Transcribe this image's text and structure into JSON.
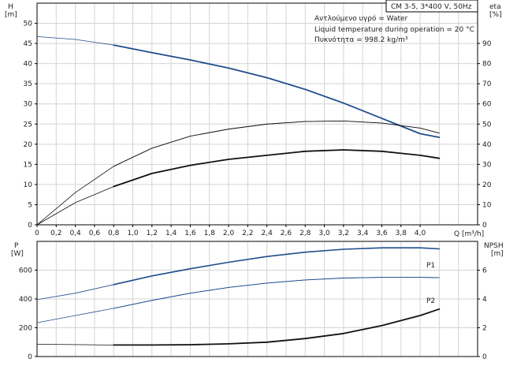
{
  "chart_data": [
    {
      "type": "line",
      "title": "CM 3-5, 3*400 V, 50Hz",
      "info_lines": [
        "Αντλούμενο υγρό = Water",
        "Liquid temperature during operation = 20 °C",
        "Πυκνότητα = 998.2 kg/m³"
      ],
      "ylabel_left": "H",
      "yunit_left": "[m]",
      "ylabel_right": "eta",
      "yunit_right": "[%]",
      "xlabel": "Q [m³/h]",
      "xlim": [
        0,
        4.6
      ],
      "ylim_left": [
        0,
        55
      ],
      "ylim_right": [
        0,
        110
      ],
      "grid": true,
      "x_ticks": [
        "0",
        "0,2",
        "0,4",
        "0,6",
        "0,8",
        "1,0",
        "1,2",
        "1,4",
        "1,6",
        "1,8",
        "2,0",
        "2,2",
        "2,4",
        "2,6",
        "2,8",
        "3,0",
        "3,2",
        "3,4",
        "3,6",
        "3,8",
        "4,0"
      ],
      "y_ticks_left": [
        "0",
        "5",
        "10",
        "15",
        "20",
        "25",
        "30",
        "35",
        "40",
        "45",
        "50"
      ],
      "y_ticks_right": [
        "0",
        "10",
        "20",
        "30",
        "40",
        "50",
        "60",
        "70",
        "80",
        "90"
      ],
      "series": [
        {
          "axis": "left",
          "color": "#1f4e8c",
          "x": [
            0,
            0.4,
            0.8,
            1.2,
            1.6,
            2.0,
            2.4,
            2.8,
            3.2,
            3.6,
            4.0,
            4.2
          ],
          "y": [
            46.7,
            46.0,
            44.6,
            42.7,
            40.9,
            38.9,
            36.5,
            33.6,
            30.2,
            26.4,
            22.6,
            21.7
          ]
        },
        {
          "axis": "right",
          "color": "#111111",
          "x": [
            0,
            0.4,
            0.8,
            1.2,
            1.6,
            2.0,
            2.4,
            2.8,
            3.2,
            3.6,
            4.0,
            4.2
          ],
          "y": [
            0,
            16,
            29,
            38,
            44,
            47.5,
            50,
            51.3,
            51.5,
            50.5,
            48,
            45.5
          ]
        },
        {
          "axis": "right",
          "color": "#111111",
          "x": [
            0,
            0.4,
            0.8,
            1.2,
            1.6,
            2.0,
            2.4,
            2.8,
            3.2,
            3.6,
            4.0,
            4.2
          ],
          "y": [
            0,
            11,
            19,
            25.5,
            29.5,
            32.5,
            34.5,
            36.5,
            37.2,
            36.5,
            34.5,
            33
          ]
        }
      ]
    },
    {
      "type": "line",
      "ylabel_left": "P",
      "yunit_left": "[W]",
      "ylabel_right": "NPSH",
      "yunit_right": "[m]",
      "xlim": [
        0,
        4.6
      ],
      "ylim_left": [
        0,
        800
      ],
      "ylim_right": [
        0,
        8
      ],
      "grid": true,
      "y_ticks_left": [
        "0",
        "200",
        "400",
        "600"
      ],
      "y_ticks_right": [
        "0",
        "2",
        "4",
        "6"
      ],
      "series": [
        {
          "name": "P1",
          "axis": "left",
          "color": "#1f4e8c",
          "x": [
            0,
            0.4,
            0.8,
            1.2,
            1.6,
            2.0,
            2.4,
            2.8,
            3.2,
            3.6,
            4.0,
            4.2
          ],
          "y": [
            395,
            440,
            500,
            560,
            610,
            655,
            695,
            725,
            745,
            755,
            755,
            748
          ]
        },
        {
          "name": "P2",
          "axis": "left",
          "color": "#1f4e8c",
          "x": [
            0,
            0.4,
            0.8,
            1.2,
            1.6,
            2.0,
            2.4,
            2.8,
            3.2,
            3.6,
            4.0,
            4.2
          ],
          "y": [
            235,
            285,
            335,
            390,
            440,
            480,
            510,
            532,
            545,
            550,
            550,
            548
          ]
        },
        {
          "axis": "right",
          "color": "#111111",
          "x": [
            0,
            0.4,
            0.8,
            1.2,
            1.6,
            2.0,
            2.4,
            2.8,
            3.2,
            3.6,
            4.0,
            4.2
          ],
          "y": [
            0.85,
            0.83,
            0.8,
            0.8,
            0.82,
            0.88,
            1.0,
            1.25,
            1.6,
            2.15,
            2.85,
            3.3
          ]
        }
      ]
    }
  ]
}
